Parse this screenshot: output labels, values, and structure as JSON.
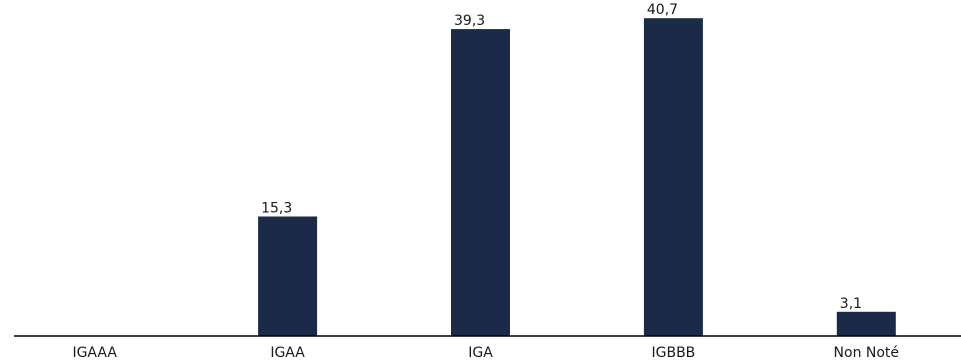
{
  "chart_data": {
    "type": "bar",
    "categories": [
      "IGAAA",
      "IGAA",
      "IGA",
      "IGBBB",
      "Non Noté"
    ],
    "values": [
      0,
      15.3,
      39.3,
      40.7,
      3.1
    ],
    "data_labels": [
      "",
      "15,3",
      "39,3",
      "40,7",
      "3,1"
    ],
    "title": "",
    "xlabel": "",
    "ylabel": "",
    "ylim": [
      0,
      42
    ],
    "grid": false,
    "legend": "none",
    "bar_color": "#1b2a47"
  }
}
